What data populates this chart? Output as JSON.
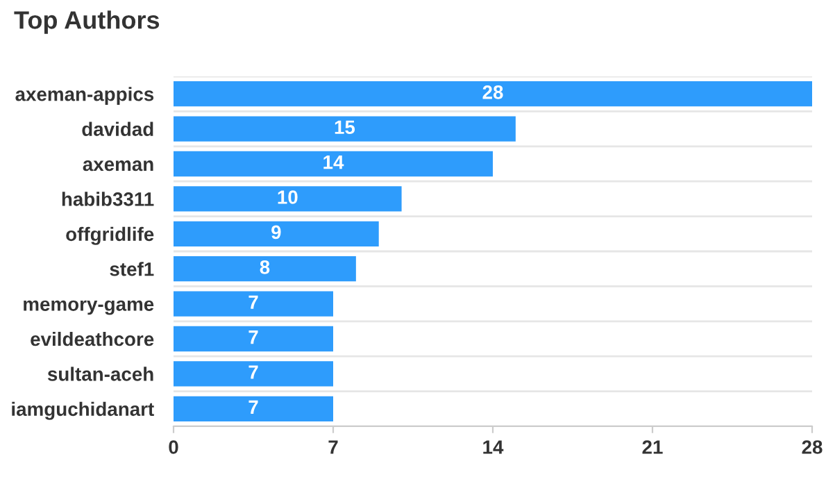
{
  "chart_data": {
    "type": "bar",
    "title": "Top Authors",
    "orientation": "horizontal",
    "categories": [
      "axeman-appics",
      "davidad",
      "axeman",
      "habib3311",
      "offgridlife",
      "stef1",
      "memory-game",
      "evildeathcore",
      "sultan-aceh",
      "iamguchidanart"
    ],
    "values": [
      28,
      15,
      14,
      10,
      9,
      8,
      7,
      7,
      7,
      7
    ],
    "color": "#2e9cfc",
    "xlim": [
      0,
      28
    ],
    "xticks": [
      0,
      7,
      14,
      21,
      28
    ],
    "grid": "y",
    "data_labels": true
  }
}
